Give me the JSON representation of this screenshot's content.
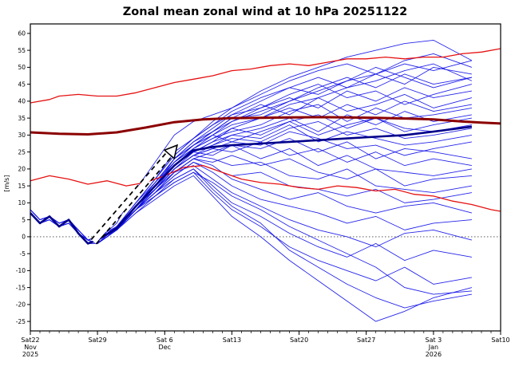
{
  "chart_data": {
    "type": "line",
    "title": "Zonal mean zonal wind at 10 hPa 20251122",
    "ylabel": "[m/s]",
    "ylim": [
      -27.8,
      62.8
    ],
    "xlim_days": [
      0,
      49
    ],
    "grid": false,
    "legend": "none",
    "y_ticks": [
      60,
      55,
      50,
      45,
      40,
      35,
      30,
      25,
      20,
      15,
      10,
      5,
      0,
      -5,
      -10,
      -15,
      -20,
      -25
    ],
    "x_ticks": [
      {
        "day": 0,
        "label": "Sat22",
        "sub": [
          "Nov",
          "2025"
        ]
      },
      {
        "day": 7,
        "label": "Sat29",
        "sub": []
      },
      {
        "day": 14,
        "label": "Sat 6",
        "sub": [
          "Dec"
        ]
      },
      {
        "day": 21,
        "label": "Sat13",
        "sub": []
      },
      {
        "day": 28,
        "label": "Sat20",
        "sub": []
      },
      {
        "day": 35,
        "label": "Sat27",
        "sub": []
      },
      {
        "day": 42,
        "label": "Sat 3",
        "sub": [
          "Jan",
          "2026"
        ]
      },
      {
        "day": 49,
        "label": "Sat10",
        "sub": []
      }
    ],
    "zero_line": 0,
    "colors": {
      "member": "#1212e8",
      "mean": "#00008b",
      "climatology": "#8b0000",
      "percentile": "#e61111"
    },
    "annotation_arrow": {
      "from_day": 6.6,
      "from_value": -1.5,
      "to_day": 15.3,
      "to_value": 27
    },
    "series": {
      "climatology": {
        "name": "climatological mean",
        "days": [
          0,
          3,
          6,
          9,
          12,
          15,
          18,
          21,
          24,
          27,
          30,
          33,
          36,
          39,
          42,
          45,
          47,
          49
        ],
        "values": [
          30.8,
          30.4,
          30.2,
          30.8,
          32.2,
          33.8,
          34.6,
          35,
          35.1,
          35.2,
          35.3,
          35.2,
          35.1,
          34.9,
          34.6,
          34,
          33.7,
          33.4
        ]
      },
      "upper_percentile": {
        "name": "upper climatological bound",
        "days": [
          0,
          2,
          3,
          5,
          7,
          9,
          11,
          13,
          15,
          17,
          19,
          21,
          23,
          25,
          27,
          29,
          31,
          33,
          35,
          37,
          39,
          41,
          43,
          45,
          47,
          49
        ],
        "values": [
          39.5,
          40.5,
          41.5,
          42,
          41.5,
          41.5,
          42.5,
          44,
          45.5,
          46.5,
          47.5,
          49,
          49.5,
          50.5,
          51,
          50.5,
          51.5,
          52.5,
          52.5,
          53,
          52.5,
          53,
          53,
          54,
          54.5,
          55.5
        ]
      },
      "lower_percentile": {
        "name": "lower climatological bound",
        "days": [
          0,
          2,
          4,
          6,
          8,
          10,
          12,
          14,
          16,
          18,
          20,
          22,
          24,
          26,
          28,
          30,
          32,
          34,
          36,
          38,
          40,
          42,
          44,
          46,
          48,
          49
        ],
        "values": [
          16.5,
          18,
          17,
          15.5,
          16.5,
          15,
          16,
          18,
          20.5,
          21,
          19,
          17,
          16,
          15.5,
          14.5,
          14,
          15,
          14.5,
          13.5,
          14,
          12.5,
          12,
          10.5,
          9.5,
          8,
          7.5
        ]
      },
      "ensemble_mean": {
        "name": "ensemble mean",
        "days": [
          0,
          1,
          2,
          3,
          4,
          5,
          6,
          7,
          9,
          11,
          13,
          15,
          17,
          19,
          21,
          24,
          27,
          30,
          33,
          36,
          39,
          42,
          46
        ],
        "values": [
          7,
          4,
          6,
          3,
          5,
          1,
          -2,
          -1,
          2.5,
          9,
          15,
          21,
          25.5,
          26.5,
          27,
          27.5,
          28,
          28.5,
          29,
          29.5,
          30,
          31,
          32.5
        ]
      },
      "members": {
        "name": "ensemble members",
        "days": [
          0,
          1,
          2,
          3,
          4,
          5,
          6,
          7,
          9,
          11,
          13,
          15,
          17,
          19,
          21,
          24,
          27,
          30,
          33,
          36,
          39,
          42,
          46
        ],
        "values": [
          [
            7,
            4,
            6,
            3,
            5,
            1,
            -2,
            -1,
            3,
            10,
            17,
            24,
            29,
            34,
            38,
            43,
            47,
            50,
            53,
            55,
            57,
            58,
            52
          ],
          [
            7,
            4,
            6,
            3,
            5,
            1,
            -2,
            -1,
            2,
            9,
            16,
            23,
            28,
            32,
            36,
            40,
            44,
            47,
            44,
            48,
            51,
            49,
            52
          ],
          [
            8,
            5,
            6,
            4,
            5,
            2,
            -1,
            0,
            3,
            10,
            17,
            24,
            29,
            33,
            37,
            41,
            44,
            42,
            46,
            48,
            45,
            50,
            48
          ],
          [
            7,
            4,
            6,
            3,
            5,
            1,
            -2,
            -1,
            2,
            8,
            15,
            22,
            27,
            30,
            34,
            37,
            40,
            44,
            47,
            44,
            48,
            45,
            47
          ],
          [
            7,
            4,
            5,
            3,
            4,
            1,
            -2,
            -1,
            3,
            9,
            16,
            23,
            28,
            31,
            35,
            39,
            36,
            41,
            44,
            46,
            49,
            51,
            46
          ],
          [
            7,
            4,
            6,
            3,
            5,
            1,
            -1,
            -2,
            2,
            9,
            15,
            23,
            27,
            31,
            34,
            38,
            42,
            45,
            41,
            43,
            39,
            42,
            45
          ],
          [
            7,
            4,
            6,
            3,
            5,
            1,
            -2,
            -1,
            3,
            10,
            17,
            25,
            29,
            33,
            36,
            38,
            41,
            38,
            43,
            40,
            44,
            41,
            43
          ],
          [
            8,
            5,
            6,
            4,
            5,
            2,
            -1,
            0,
            2,
            9,
            15,
            22,
            26,
            30,
            33,
            35,
            39,
            41,
            37,
            39,
            42,
            38,
            41
          ],
          [
            7,
            4,
            6,
            3,
            5,
            1,
            -2,
            -1,
            2,
            8,
            14,
            20,
            25,
            28,
            32,
            35,
            38,
            35,
            39,
            36,
            40,
            37,
            39
          ],
          [
            7,
            4,
            6,
            3,
            5,
            1,
            -2,
            -2,
            3,
            9,
            15,
            21,
            26,
            29,
            31,
            33,
            37,
            39,
            34,
            38,
            35,
            36,
            38
          ],
          [
            7,
            4,
            5,
            3,
            4,
            1,
            -2,
            -1,
            2,
            8,
            14,
            21,
            25,
            28,
            30,
            32,
            35,
            31,
            36,
            33,
            37,
            34,
            36
          ],
          [
            7,
            4,
            6,
            3,
            5,
            1,
            -1,
            -2,
            2,
            9,
            15,
            22,
            26,
            29,
            32,
            30,
            34,
            36,
            32,
            35,
            31,
            33,
            35
          ],
          [
            7,
            4,
            6,
            3,
            5,
            1,
            -2,
            -1,
            3,
            10,
            16,
            23,
            27,
            30,
            28,
            31,
            34,
            30,
            33,
            35,
            32,
            31,
            33
          ],
          [
            8,
            5,
            6,
            4,
            5,
            2,
            -1,
            0,
            2,
            8,
            14,
            20,
            24,
            27,
            29,
            28,
            32,
            34,
            30,
            32,
            29,
            30,
            32
          ],
          [
            7,
            4,
            6,
            3,
            5,
            1,
            -2,
            -1,
            2,
            9,
            15,
            21,
            25,
            27,
            30,
            29,
            33,
            28,
            31,
            29,
            27,
            28,
            30
          ],
          [
            7,
            4,
            6,
            3,
            5,
            1,
            -1,
            -2,
            3,
            9,
            14,
            20,
            24,
            26,
            28,
            27,
            31,
            29,
            26,
            27,
            24,
            26,
            28
          ],
          [
            7,
            4,
            5,
            3,
            4,
            1,
            -2,
            -1,
            2,
            8,
            13,
            19,
            23,
            25,
            27,
            26,
            29,
            25,
            28,
            23,
            26,
            25,
            23
          ],
          [
            7,
            4,
            6,
            3,
            5,
            1,
            -1,
            -2,
            2,
            8,
            14,
            20,
            24,
            26,
            25,
            28,
            24,
            26,
            22,
            25,
            21,
            23,
            21
          ],
          [
            7,
            4,
            6,
            3,
            5,
            1,
            -2,
            -1,
            3,
            9,
            15,
            21,
            25,
            24,
            27,
            23,
            26,
            21,
            24,
            20,
            19,
            18,
            20
          ],
          [
            8,
            5,
            6,
            4,
            5,
            2,
            -1,
            0,
            2,
            8,
            13,
            19,
            23,
            22,
            24,
            21,
            23,
            19,
            17,
            20,
            15,
            17,
            18
          ],
          [
            7,
            4,
            6,
            3,
            5,
            1,
            -2,
            -1,
            2,
            9,
            14,
            20,
            24,
            23,
            21,
            22,
            18,
            17,
            20,
            15,
            14,
            13,
            15
          ],
          [
            7,
            4,
            6,
            3,
            5,
            1,
            -1,
            -2,
            3,
            8,
            13,
            18,
            22,
            20,
            18,
            19,
            15,
            14,
            12,
            14,
            10,
            11,
            13
          ],
          [
            7,
            4,
            5,
            3,
            4,
            1,
            -2,
            -1,
            2,
            8,
            14,
            19,
            23,
            21,
            17,
            14,
            11,
            13,
            9,
            7,
            9,
            10,
            7
          ],
          [
            7,
            4,
            6,
            3,
            5,
            1,
            -1,
            -2,
            2,
            8,
            13,
            18,
            22,
            19,
            15,
            11,
            9,
            7,
            4,
            6,
            2,
            4,
            5
          ],
          [
            7,
            4,
            6,
            3,
            5,
            1,
            -2,
            -1,
            3,
            9,
            14,
            19,
            21,
            17,
            13,
            9,
            5,
            2,
            0,
            -3,
            1,
            2,
            -1
          ],
          [
            8,
            5,
            6,
            4,
            5,
            2,
            -1,
            0,
            2,
            8,
            12,
            17,
            20,
            15,
            10,
            6,
            1,
            -3,
            -6,
            -2,
            -7,
            -4,
            -6
          ],
          [
            7,
            4,
            6,
            3,
            5,
            1,
            -2,
            -1,
            2,
            7,
            12,
            16,
            19,
            13,
            8,
            3,
            -3,
            -7,
            -10,
            -13,
            -9,
            -14,
            -12
          ],
          [
            7,
            4,
            6,
            3,
            5,
            1,
            -1,
            -2,
            2,
            8,
            13,
            17,
            20,
            14,
            9,
            4,
            -4,
            -9,
            -14,
            -18,
            -21,
            -19,
            -17
          ],
          [
            7,
            4,
            5,
            3,
            4,
            1,
            -2,
            -1,
            2,
            7,
            11,
            15,
            18,
            12,
            6,
            0,
            -7,
            -13,
            -19,
            -25,
            -22,
            -18,
            -15
          ],
          [
            7,
            4,
            6,
            3,
            5,
            1,
            -1,
            -2,
            2,
            8,
            12,
            16,
            19,
            16,
            12,
            8,
            3,
            -1,
            -5,
            -9,
            -15,
            -17,
            -16
          ],
          [
            7,
            4,
            6,
            3,
            5,
            1,
            -2,
            -1,
            4,
            14,
            22,
            30,
            34,
            36,
            38,
            42,
            46,
            49,
            51,
            48,
            52,
            54,
            50
          ],
          [
            8,
            5,
            6,
            4,
            5,
            2,
            -1,
            0,
            2,
            9,
            16,
            22,
            27,
            31,
            35,
            36,
            40,
            43,
            46,
            50,
            47,
            44,
            47
          ]
        ]
      }
    }
  }
}
